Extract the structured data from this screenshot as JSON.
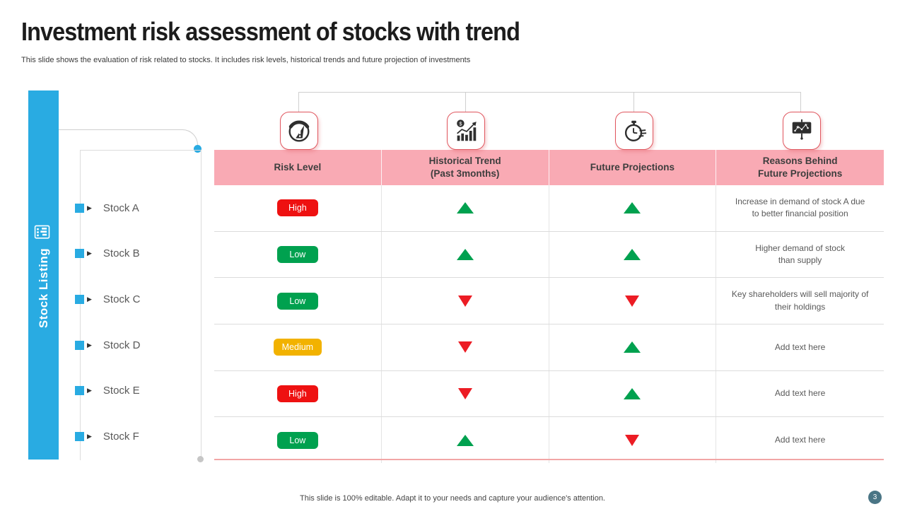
{
  "slide": {
    "title": "Investment risk assessment of stocks with trend",
    "subtitle": "This slide shows the evaluation of risk related to stocks. It includes risk levels, historical trends and future projection of investments",
    "footer": "This slide is 100% editable. Adapt it to your needs and capture your audience's attention.",
    "page_number": "3"
  },
  "sidebar": {
    "label": "Stock Listing",
    "icon": "clipboard-chart-icon"
  },
  "table": {
    "columns": [
      {
        "label": "Risk Level",
        "icon": "gauge-icon"
      },
      {
        "label": "Historical Trend\n(Past 3months)",
        "icon": "bar-chart-dollar-icon"
      },
      {
        "label": "Future Projections",
        "icon": "stopwatch-icon"
      },
      {
        "label": "Reasons Behind\nFuture Projections",
        "icon": "presentation-chart-icon"
      }
    ],
    "rows": [
      {
        "stock": "Stock A",
        "risk": "High",
        "risk_color": "#EE1111",
        "historical": "up",
        "future": "up",
        "reason": "Increase in demand of stock A due\nto better  financial position"
      },
      {
        "stock": "Stock B",
        "risk": "Low",
        "risk_color": "#00A14F",
        "historical": "up",
        "future": "up",
        "reason": "Higher demand of stock\nthan supply"
      },
      {
        "stock": "Stock C",
        "risk": "Low",
        "risk_color": "#00A14F",
        "historical": "down",
        "future": "down",
        "reason": "Key shareholders will sell majority of\ntheir holdings"
      },
      {
        "stock": "Stock D",
        "risk": "Medium",
        "risk_color": "#F2B200",
        "historical": "down",
        "future": "up",
        "reason": "Add text here"
      },
      {
        "stock": "Stock E",
        "risk": "High",
        "risk_color": "#EE1111",
        "historical": "down",
        "future": "up",
        "reason": "Add text here"
      },
      {
        "stock": "Stock F",
        "risk": "Low",
        "risk_color": "#00A14F",
        "historical": "up",
        "future": "down",
        "reason": "Add text here"
      }
    ]
  },
  "colors": {
    "accent_blue": "#29ABE2",
    "header_pink": "#F9AAB4",
    "icon_border_red": "#E0565E",
    "trend_up_green": "#00A14F",
    "trend_down_red": "#EC1C24",
    "table_bottom_line": "#F2A6A6",
    "page_badge": "#4A7585"
  }
}
